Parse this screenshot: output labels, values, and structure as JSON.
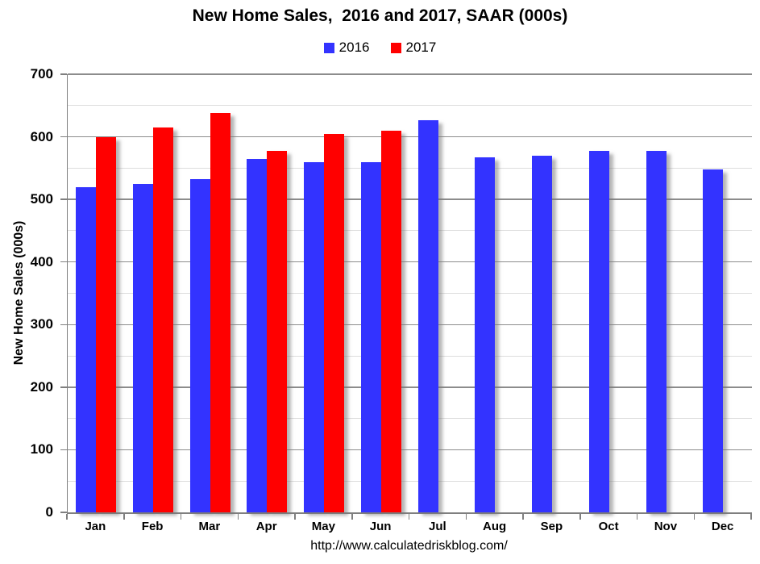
{
  "chart_data": {
    "type": "bar",
    "title": "New Home Sales,  2016 and 2017, SAAR (000s)",
    "xlabel": "",
    "ylabel": "New Home Sales (000s)",
    "categories": [
      "Jan",
      "Feb",
      "Mar",
      "Apr",
      "May",
      "Jun",
      "Jul",
      "Aug",
      "Sep",
      "Oct",
      "Nov",
      "Dec"
    ],
    "series": [
      {
        "name": "2016",
        "color": "#3333FF",
        "values": [
          520,
          525,
          533,
          565,
          560,
          559,
          627,
          567,
          570,
          577,
          578,
          548
        ]
      },
      {
        "name": "2017",
        "color": "#FF0000",
        "values": [
          599,
          615,
          638,
          577,
          605,
          610,
          null,
          null,
          null,
          null,
          null,
          null
        ]
      }
    ],
    "ylim": [
      0,
      700
    ],
    "y_major_step": 100,
    "y_minor_step": 50,
    "y_ticks": [
      "0",
      "100",
      "200",
      "300",
      "400",
      "500",
      "600",
      "700"
    ],
    "grid": "on",
    "legend_position": "top-center"
  },
  "footer": {
    "url_text": "http://www.calculatedriskblog.com/"
  },
  "colors": {
    "series_2016": "#3333FF",
    "series_2017": "#FF0000",
    "major_gridline": "#8c8c8c",
    "minor_gridline": "#dcdcdc",
    "axis_line": "#7f7f7f",
    "background": "#ffffff",
    "text": "#000000"
  }
}
